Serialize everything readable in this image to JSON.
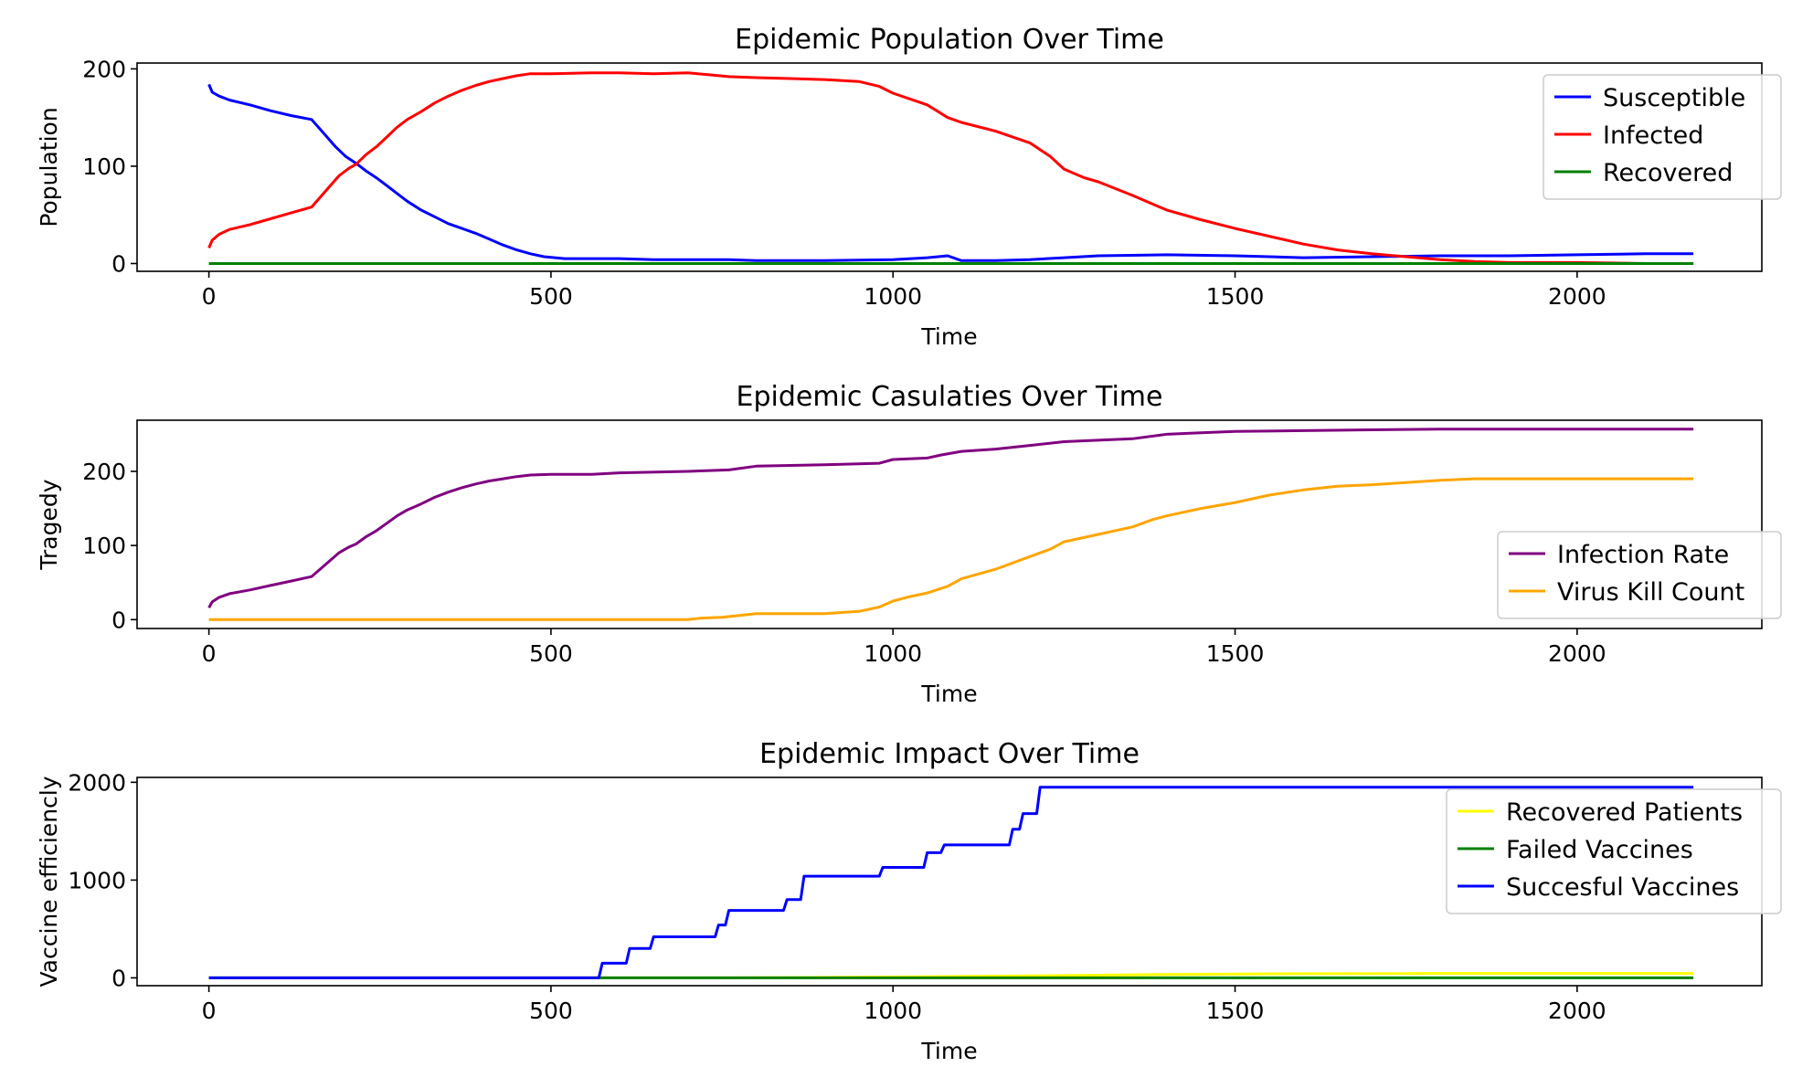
{
  "chart_data": [
    {
      "type": "line",
      "title": "Epidemic Population Over Time",
      "xlabel": "Time",
      "ylabel": "Population",
      "xlim": [
        -105,
        2270
      ],
      "ylim": [
        -8,
        206
      ],
      "xticks": [
        0,
        500,
        1000,
        1500,
        2000
      ],
      "yticks": [
        0,
        100,
        200
      ],
      "legend": "top-right",
      "series": [
        {
          "name": "Susceptible",
          "color": "#0000ff",
          "points": [
            [
              0,
              184
            ],
            [
              5,
              176
            ],
            [
              15,
              172
            ],
            [
              30,
              168
            ],
            [
              60,
              163
            ],
            [
              90,
              157
            ],
            [
              120,
              152
            ],
            [
              150,
              148
            ],
            [
              160,
              140
            ],
            [
              170,
              132
            ],
            [
              185,
              120
            ],
            [
              200,
              110
            ],
            [
              215,
              103
            ],
            [
              230,
              95
            ],
            [
              245,
              88
            ],
            [
              260,
              80
            ],
            [
              275,
              72
            ],
            [
              290,
              64
            ],
            [
              310,
              55
            ],
            [
              330,
              48
            ],
            [
              350,
              41
            ],
            [
              370,
              36
            ],
            [
              390,
              31
            ],
            [
              410,
              25
            ],
            [
              430,
              19
            ],
            [
              450,
              14
            ],
            [
              470,
              10
            ],
            [
              490,
              7
            ],
            [
              520,
              5
            ],
            [
              560,
              5
            ],
            [
              600,
              5
            ],
            [
              650,
              4
            ],
            [
              700,
              4
            ],
            [
              760,
              4
            ],
            [
              800,
              3
            ],
            [
              900,
              3
            ],
            [
              1000,
              4
            ],
            [
              1050,
              6
            ],
            [
              1080,
              8
            ],
            [
              1100,
              3
            ],
            [
              1150,
              3
            ],
            [
              1200,
              4
            ],
            [
              1250,
              6
            ],
            [
              1300,
              8
            ],
            [
              1400,
              9
            ],
            [
              1500,
              8
            ],
            [
              1600,
              6
            ],
            [
              1700,
              7
            ],
            [
              1800,
              8
            ],
            [
              1900,
              8
            ],
            [
              2000,
              9
            ],
            [
              2100,
              10
            ],
            [
              2170,
              10
            ]
          ]
        },
        {
          "name": "Infected",
          "color": "#ff0000",
          "points": [
            [
              0,
              16
            ],
            [
              5,
              24
            ],
            [
              15,
              30
            ],
            [
              30,
              35
            ],
            [
              60,
              40
            ],
            [
              90,
              46
            ],
            [
              120,
              52
            ],
            [
              150,
              58
            ],
            [
              160,
              66
            ],
            [
              175,
              78
            ],
            [
              190,
              90
            ],
            [
              205,
              98
            ],
            [
              215,
              102
            ],
            [
              230,
              112
            ],
            [
              245,
              120
            ],
            [
              260,
              130
            ],
            [
              275,
              140
            ],
            [
              290,
              148
            ],
            [
              310,
              156
            ],
            [
              330,
              165
            ],
            [
              350,
              172
            ],
            [
              370,
              178
            ],
            [
              390,
              183
            ],
            [
              410,
              187
            ],
            [
              430,
              190
            ],
            [
              450,
              193
            ],
            [
              470,
              195
            ],
            [
              500,
              195
            ],
            [
              560,
              196
            ],
            [
              600,
              196
            ],
            [
              650,
              195
            ],
            [
              700,
              196
            ],
            [
              730,
              194
            ],
            [
              760,
              192
            ],
            [
              800,
              191
            ],
            [
              850,
              190
            ],
            [
              900,
              189
            ],
            [
              950,
              187
            ],
            [
              980,
              182
            ],
            [
              1000,
              175
            ],
            [
              1050,
              163
            ],
            [
              1080,
              150
            ],
            [
              1100,
              145
            ],
            [
              1150,
              136
            ],
            [
              1200,
              124
            ],
            [
              1230,
              110
            ],
            [
              1250,
              97
            ],
            [
              1280,
              88
            ],
            [
              1300,
              84
            ],
            [
              1350,
              70
            ],
            [
              1400,
              55
            ],
            [
              1450,
              45
            ],
            [
              1500,
              36
            ],
            [
              1550,
              28
            ],
            [
              1600,
              20
            ],
            [
              1650,
              14
            ],
            [
              1700,
              10
            ],
            [
              1750,
              7
            ],
            [
              1800,
              4
            ],
            [
              1850,
              2
            ],
            [
              1900,
              1
            ],
            [
              2000,
              1
            ],
            [
              2100,
              0
            ],
            [
              2170,
              0
            ]
          ]
        },
        {
          "name": "Recovered",
          "color": "#008000",
          "points": [
            [
              0,
              0
            ],
            [
              2170,
              0
            ]
          ]
        }
      ]
    },
    {
      "type": "line",
      "title": "Epidemic Casulaties Over Time",
      "xlabel": "Time",
      "ylabel": "Tragedy",
      "xlim": [
        -105,
        2270
      ],
      "ylim": [
        -12,
        269
      ],
      "xticks": [
        0,
        500,
        1000,
        1500,
        2000
      ],
      "yticks": [
        0,
        100,
        200
      ],
      "legend": "center-right",
      "series": [
        {
          "name": "Infection Rate",
          "color": "#800080",
          "points": [
            [
              0,
              16
            ],
            [
              5,
              24
            ],
            [
              15,
              30
            ],
            [
              30,
              35
            ],
            [
              60,
              40
            ],
            [
              90,
              46
            ],
            [
              120,
              52
            ],
            [
              150,
              58
            ],
            [
              160,
              66
            ],
            [
              175,
              78
            ],
            [
              190,
              90
            ],
            [
              205,
              98
            ],
            [
              215,
              102
            ],
            [
              230,
              112
            ],
            [
              245,
              120
            ],
            [
              260,
              130
            ],
            [
              275,
              140
            ],
            [
              290,
              148
            ],
            [
              310,
              156
            ],
            [
              330,
              165
            ],
            [
              350,
              172
            ],
            [
              370,
              178
            ],
            [
              390,
              183
            ],
            [
              410,
              187
            ],
            [
              430,
              190
            ],
            [
              450,
              193
            ],
            [
              470,
              195
            ],
            [
              500,
              196
            ],
            [
              560,
              196
            ],
            [
              600,
              198
            ],
            [
              700,
              200
            ],
            [
              760,
              202
            ],
            [
              800,
              207
            ],
            [
              850,
              208
            ],
            [
              900,
              209
            ],
            [
              980,
              211
            ],
            [
              1000,
              216
            ],
            [
              1050,
              218
            ],
            [
              1070,
              222
            ],
            [
              1100,
              227
            ],
            [
              1150,
              230
            ],
            [
              1200,
              235
            ],
            [
              1250,
              240
            ],
            [
              1300,
              242
            ],
            [
              1350,
              244
            ],
            [
              1400,
              250
            ],
            [
              1450,
              252
            ],
            [
              1500,
              254
            ],
            [
              1600,
              255
            ],
            [
              1700,
              256
            ],
            [
              1800,
              257
            ],
            [
              1900,
              257
            ],
            [
              2000,
              257
            ],
            [
              2170,
              257
            ]
          ]
        },
        {
          "name": "Virus Kill Count",
          "color": "#ffa500",
          "points": [
            [
              0,
              0
            ],
            [
              700,
              0
            ],
            [
              720,
              2
            ],
            [
              750,
              3
            ],
            [
              780,
              6
            ],
            [
              800,
              8
            ],
            [
              900,
              8
            ],
            [
              950,
              11
            ],
            [
              980,
              17
            ],
            [
              1000,
              25
            ],
            [
              1020,
              30
            ],
            [
              1050,
              36
            ],
            [
              1080,
              45
            ],
            [
              1100,
              55
            ],
            [
              1150,
              68
            ],
            [
              1200,
              85
            ],
            [
              1230,
              95
            ],
            [
              1250,
              105
            ],
            [
              1300,
              115
            ],
            [
              1350,
              125
            ],
            [
              1380,
              135
            ],
            [
              1400,
              140
            ],
            [
              1450,
              150
            ],
            [
              1500,
              158
            ],
            [
              1550,
              168
            ],
            [
              1600,
              175
            ],
            [
              1650,
              180
            ],
            [
              1700,
              182
            ],
            [
              1750,
              185
            ],
            [
              1800,
              188
            ],
            [
              1850,
              190
            ],
            [
              2170,
              190
            ]
          ]
        }
      ]
    },
    {
      "type": "line",
      "title": "Epidemic Impact Over Time",
      "xlabel": "Time",
      "ylabel": "Vaccine efficiencly",
      "xlim": [
        -105,
        2270
      ],
      "ylim": [
        -80,
        2050
      ],
      "xticks": [
        0,
        500,
        1000,
        1500,
        2000
      ],
      "yticks": [
        0,
        1000,
        2000
      ],
      "legend": "top-right",
      "series": [
        {
          "name": "Recovered Patients",
          "color": "#ffff00",
          "points": [
            [
              0,
              0
            ],
            [
              700,
              0
            ],
            [
              900,
              5
            ],
            [
              1000,
              10
            ],
            [
              1200,
              20
            ],
            [
              1400,
              35
            ],
            [
              1600,
              42
            ],
            [
              1800,
              45
            ],
            [
              2000,
              45
            ],
            [
              2170,
              45
            ]
          ]
        },
        {
          "name": "Failed Vaccines",
          "color": "#008000",
          "points": [
            [
              0,
              0
            ],
            [
              2170,
              0
            ]
          ]
        },
        {
          "name": "Succesful Vaccines",
          "color": "#0000ff",
          "points": [
            [
              0,
              0
            ],
            [
              570,
              0
            ],
            [
              575,
              150
            ],
            [
              610,
              150
            ],
            [
              615,
              300
            ],
            [
              645,
              300
            ],
            [
              650,
              420
            ],
            [
              740,
              420
            ],
            [
              745,
              540
            ],
            [
              755,
              540
            ],
            [
              760,
              690
            ],
            [
              840,
              690
            ],
            [
              845,
              800
            ],
            [
              865,
              800
            ],
            [
              870,
              1040
            ],
            [
              980,
              1040
            ],
            [
              985,
              1130
            ],
            [
              1045,
              1130
            ],
            [
              1050,
              1280
            ],
            [
              1070,
              1280
            ],
            [
              1075,
              1360
            ],
            [
              1170,
              1360
            ],
            [
              1175,
              1520
            ],
            [
              1185,
              1520
            ],
            [
              1190,
              1680
            ],
            [
              1210,
              1680
            ],
            [
              1215,
              1950
            ],
            [
              2170,
              1950
            ]
          ]
        }
      ]
    }
  ]
}
